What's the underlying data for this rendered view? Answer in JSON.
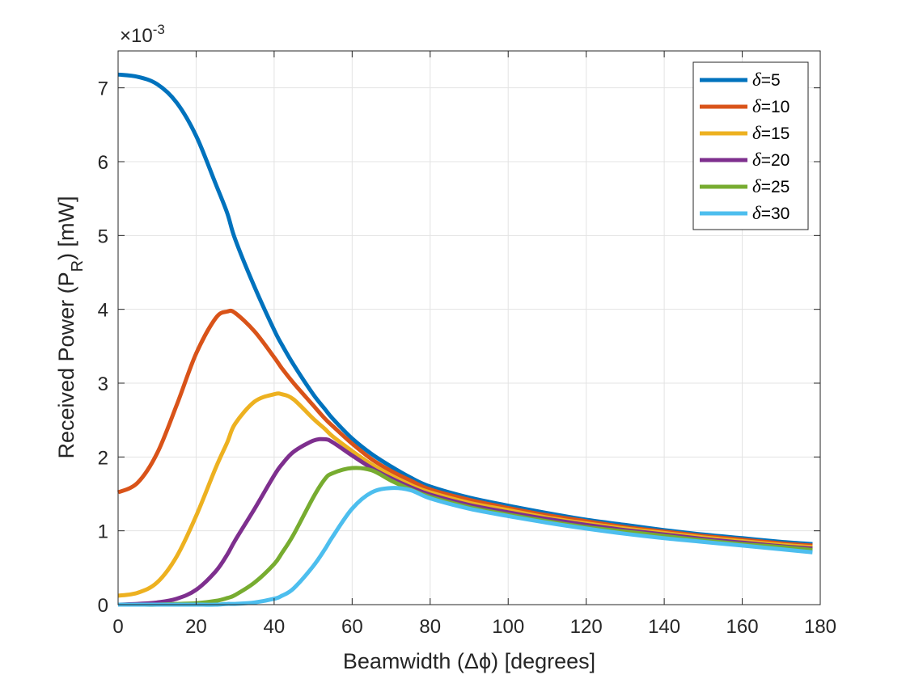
{
  "chart_data": {
    "type": "line",
    "title": "",
    "xlabel": "Beamwidth (Δϕ) [degrees]",
    "ylabel": "Received Power (P_R) [mW]",
    "ylabel_parts": {
      "before": "Received Power (P",
      "sub": "R",
      "after": ") [mW]"
    },
    "y_exponent_label": "×10",
    "y_exponent": "-3",
    "xlim": [
      0,
      180
    ],
    "ylim": [
      0,
      7.5
    ],
    "xticks": [
      0,
      20,
      40,
      60,
      80,
      100,
      120,
      140,
      160,
      180
    ],
    "yticks": [
      0,
      1,
      2,
      3,
      4,
      5,
      6,
      7
    ],
    "grid": true,
    "legend_position": "top-right",
    "x": [
      0,
      5,
      10,
      15,
      20,
      25,
      28,
      30,
      35,
      40,
      42,
      45,
      50,
      53,
      55,
      60,
      65,
      70,
      75,
      80,
      90,
      100,
      110,
      120,
      130,
      140,
      150,
      160,
      170,
      178
    ],
    "series": [
      {
        "name": "δ=5",
        "greek": "δ",
        "suffix": "=5",
        "color": "#0072BD",
        "values": [
          7.18,
          7.15,
          7.05,
          6.8,
          6.35,
          5.7,
          5.3,
          4.95,
          4.3,
          3.72,
          3.52,
          3.25,
          2.85,
          2.65,
          2.52,
          2.25,
          2.04,
          1.87,
          1.72,
          1.6,
          1.45,
          1.34,
          1.24,
          1.15,
          1.08,
          1.01,
          0.95,
          0.9,
          0.85,
          0.82
        ]
      },
      {
        "name": "δ=10",
        "greek": "δ",
        "suffix": "=10",
        "color": "#D95319",
        "values": [
          1.52,
          1.65,
          2.05,
          2.7,
          3.4,
          3.88,
          3.97,
          3.95,
          3.7,
          3.35,
          3.2,
          3.0,
          2.7,
          2.52,
          2.42,
          2.18,
          1.97,
          1.81,
          1.68,
          1.56,
          1.42,
          1.31,
          1.21,
          1.13,
          1.05,
          0.99,
          0.93,
          0.88,
          0.83,
          0.8
        ]
      },
      {
        "name": "δ=15",
        "greek": "δ",
        "suffix": "=15",
        "color": "#EDB120",
        "values": [
          0.12,
          0.16,
          0.3,
          0.65,
          1.2,
          1.85,
          2.2,
          2.45,
          2.75,
          2.85,
          2.85,
          2.78,
          2.52,
          2.38,
          2.28,
          2.08,
          1.9,
          1.75,
          1.62,
          1.52,
          1.38,
          1.28,
          1.18,
          1.1,
          1.03,
          0.97,
          0.91,
          0.86,
          0.81,
          0.78
        ]
      },
      {
        "name": "δ=20",
        "greek": "δ",
        "suffix": "=20",
        "color": "#7E2F8E",
        "values": [
          0.0,
          0.01,
          0.03,
          0.08,
          0.2,
          0.45,
          0.68,
          0.87,
          1.3,
          1.75,
          1.9,
          2.07,
          2.22,
          2.24,
          2.2,
          2.02,
          1.85,
          1.71,
          1.59,
          1.49,
          1.35,
          1.25,
          1.16,
          1.08,
          1.01,
          0.95,
          0.89,
          0.84,
          0.79,
          0.76
        ]
      },
      {
        "name": "δ=25",
        "greek": "δ",
        "suffix": "=25",
        "color": "#77AC30",
        "values": [
          0.0,
          0.0,
          0.0,
          0.01,
          0.02,
          0.05,
          0.09,
          0.13,
          0.3,
          0.55,
          0.7,
          0.95,
          1.45,
          1.7,
          1.78,
          1.85,
          1.82,
          1.68,
          1.56,
          1.46,
          1.32,
          1.22,
          1.13,
          1.05,
          0.99,
          0.93,
          0.87,
          0.82,
          0.78,
          0.74
        ]
      },
      {
        "name": "δ=30",
        "greek": "δ",
        "suffix": "=30",
        "color": "#4DBEEE",
        "values": [
          0.0,
          0.0,
          0.0,
          0.0,
          0.0,
          0.0,
          0.01,
          0.01,
          0.03,
          0.08,
          0.12,
          0.22,
          0.52,
          0.75,
          0.92,
          1.3,
          1.52,
          1.58,
          1.55,
          1.44,
          1.3,
          1.2,
          1.11,
          1.03,
          0.96,
          0.9,
          0.85,
          0.8,
          0.75,
          0.71
        ]
      }
    ]
  }
}
